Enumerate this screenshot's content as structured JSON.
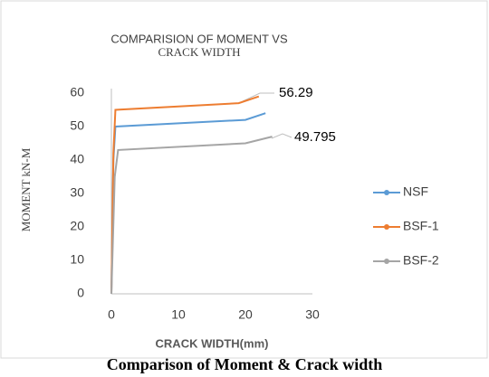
{
  "chart_data": {
    "type": "line",
    "title": [
      "COMPARISION OF MOMENT VS",
      "CRACK WIDTH"
    ],
    "x_label": "CRACK WIDTH(mm)",
    "y_label": "MOMENT kN-M",
    "caption": "Comparison of Moment & Crack width",
    "annotations": [
      "56.29",
      "49.795"
    ],
    "legend": "right",
    "xlim": [
      0,
      30
    ],
    "xticks": [
      0,
      10,
      20,
      30
    ],
    "ylim": [
      0,
      60
    ],
    "yticks": [
      0,
      10,
      20,
      30,
      40,
      50,
      60
    ],
    "series": [
      {
        "name": "NSF",
        "color": "#5b9bd5",
        "x": [
          0,
          0.3,
          0.6,
          20,
          23
        ],
        "values": [
          0,
          40,
          50,
          52,
          54
        ]
      },
      {
        "name": "BSF-1",
        "color": "#ed7d31",
        "x": [
          0,
          0.3,
          0.6,
          19,
          22
        ],
        "values": [
          0,
          42,
          55,
          57,
          59
        ]
      },
      {
        "name": "BSF-2",
        "color": "#a5a5a5",
        "x": [
          0,
          0.5,
          1,
          20,
          24
        ],
        "values": [
          0,
          35,
          43,
          45,
          47
        ]
      }
    ]
  }
}
